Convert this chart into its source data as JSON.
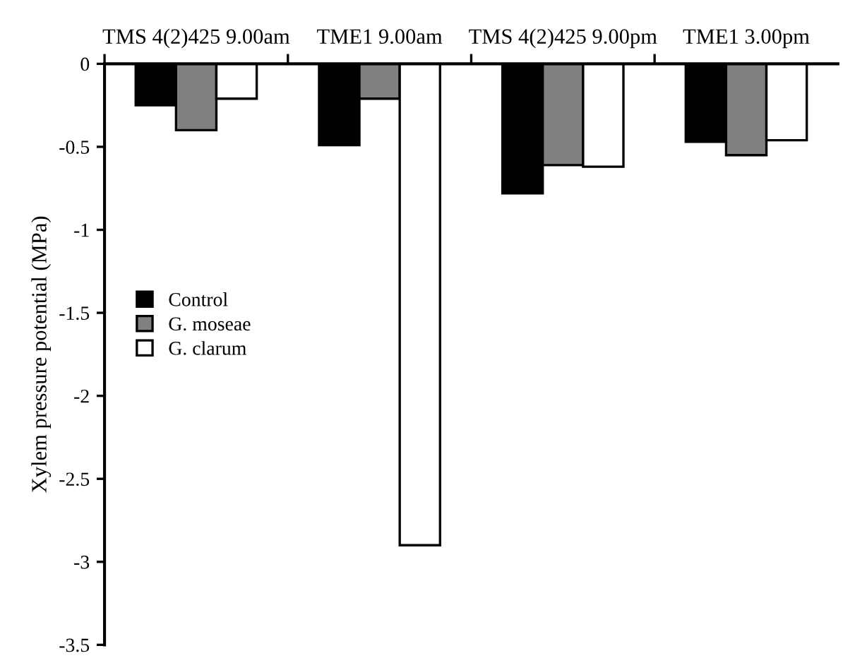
{
  "chart_data": {
    "type": "bar",
    "ylabel": "Xylem pressure potential (MPa)",
    "categories": [
      "TMS 4(2)425 9.00am",
      "TME1 9.00am",
      "TMS 4(2)425 9.00pm",
      "TME1 3.00pm"
    ],
    "series": [
      {
        "name": "Control",
        "color": "#000000",
        "values": [
          -0.25,
          -0.49,
          -0.78,
          -0.47
        ]
      },
      {
        "name": "G. moseae",
        "color": "#808080",
        "values": [
          -0.4,
          -0.21,
          -0.61,
          -0.55
        ]
      },
      {
        "name": "G. clarum",
        "color": "#ffffff",
        "values": [
          -0.21,
          -2.9,
          -0.62,
          -0.46
        ]
      }
    ],
    "ylim": [
      -3.5,
      0
    ],
    "yticks": [
      {
        "value": 0,
        "label": "0"
      },
      {
        "value": -0.5,
        "label": "-0.5"
      },
      {
        "value": -1,
        "label": "-1"
      },
      {
        "value": -1.5,
        "label": "-1.5"
      },
      {
        "value": -2,
        "label": "-2"
      },
      {
        "value": -2.5,
        "label": "-2.5"
      },
      {
        "value": -3,
        "label": "-3"
      },
      {
        "value": -3.5,
        "label": "-3.5"
      }
    ],
    "grid": false,
    "legend": "left"
  }
}
